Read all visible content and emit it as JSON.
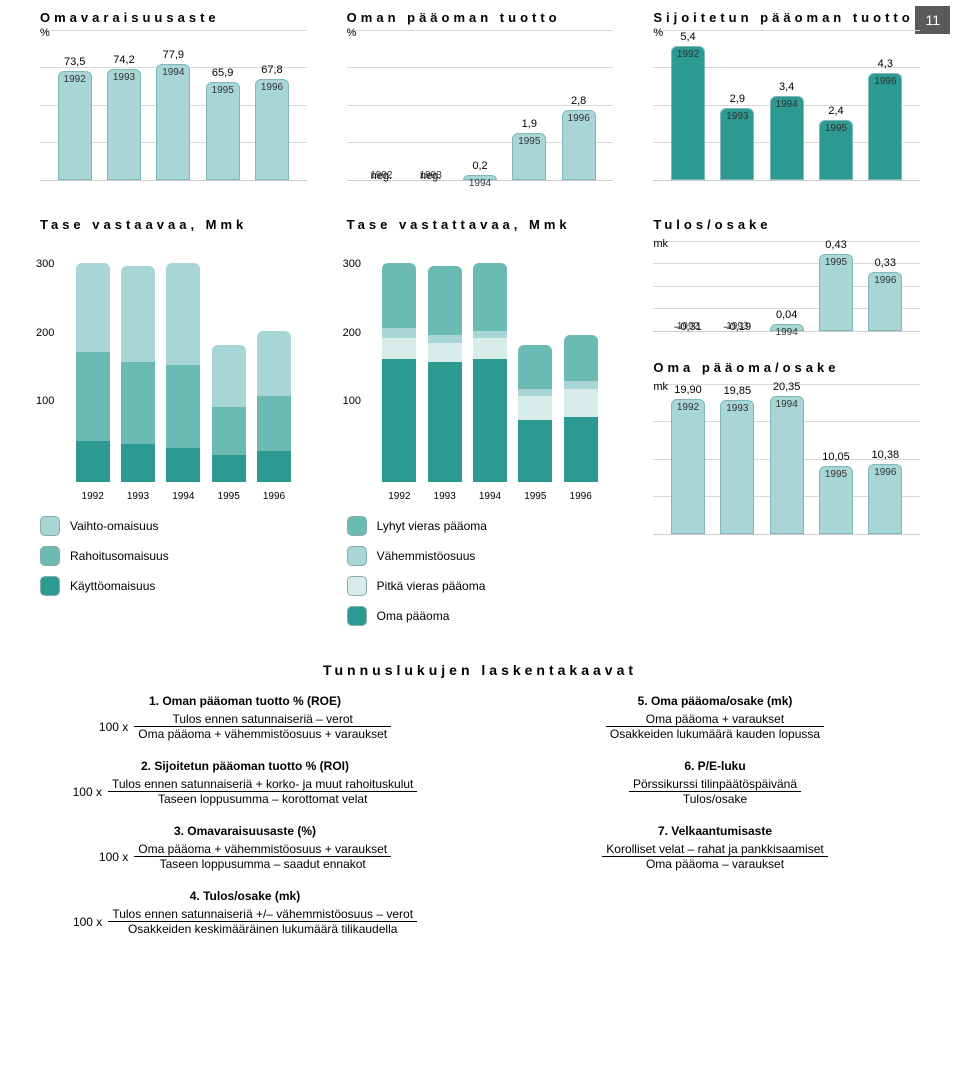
{
  "page_number": "11",
  "colors": {
    "bar_light": "#a8d5d6",
    "bar_dark": "#2c9a91",
    "seg3": "#6bbab4",
    "seg_pale": "#d8ece9",
    "grid": "#d8d8d8"
  },
  "chart1": {
    "title": "Omavaraisuusaste",
    "ylabel": "%",
    "years": [
      "1992",
      "1993",
      "1994",
      "1995",
      "1996"
    ],
    "values": [
      73.5,
      74.2,
      77.9,
      65.9,
      67.8
    ],
    "labels": [
      "73,5",
      "74,2",
      "77,9",
      "65,9",
      "67,8"
    ],
    "ymax": 100
  },
  "chart2": {
    "title": "Oman pääoman tuotto",
    "ylabel": "%",
    "years": [
      "1992",
      "1993",
      "1994",
      "1995",
      "1996"
    ],
    "values": [
      null,
      null,
      0.2,
      1.9,
      2.8
    ],
    "labels": [
      "neg.",
      "neg.",
      "0,2",
      "1,9",
      "2,8"
    ],
    "ymax": 6
  },
  "chart3": {
    "title": "Sijoitetun pääoman tuotto",
    "ylabel": "%",
    "years": [
      "1992",
      "1993",
      "1994",
      "1995",
      "1996"
    ],
    "values": [
      5.4,
      2.9,
      3.4,
      2.4,
      4.3
    ],
    "labels": [
      "5,4",
      "2,9",
      "3,4",
      "2,4",
      "4,3"
    ],
    "ymax": 6,
    "bar_color": "#2c9a91"
  },
  "chart4": {
    "title": "Tase vastaavaa, Mmk",
    "years": [
      "1992",
      "1993",
      "1994",
      "1995",
      "1996"
    ],
    "yticks": [
      "300",
      "200",
      "100"
    ],
    "ymax": 350,
    "stacks": [
      [
        60,
        130,
        130
      ],
      [
        55,
        120,
        140
      ],
      [
        50,
        120,
        150
      ],
      [
        40,
        70,
        90
      ],
      [
        45,
        80,
        95
      ]
    ],
    "seg_colors": [
      "#2c9a91",
      "#6bbab4",
      "#a8d5d6"
    ],
    "legend": [
      {
        "label": "Vaihto-omaisuus",
        "color": "#a8d5d6"
      },
      {
        "label": "Rahoitusomaisuus",
        "color": "#6bbab4"
      },
      {
        "label": "Käyttöomaisuus",
        "color": "#2c9a91"
      }
    ]
  },
  "chart5": {
    "title": "Tase vastattavaa, Mmk",
    "years": [
      "1992",
      "1993",
      "1994",
      "1995",
      "1996"
    ],
    "yticks": [
      "300",
      "200",
      "100"
    ],
    "ymax": 350,
    "stacks": [
      [
        180,
        30,
        15,
        95
      ],
      [
        175,
        28,
        12,
        100
      ],
      [
        180,
        30,
        10,
        100
      ],
      [
        90,
        35,
        10,
        65
      ],
      [
        95,
        40,
        12,
        68
      ]
    ],
    "seg_colors": [
      "#2c9a91",
      "#d8ece9",
      "#a8d5d6",
      "#6bbab4"
    ],
    "legend": [
      {
        "label": "Lyhyt vieras pääoma",
        "color": "#6bbab4"
      },
      {
        "label": "Vähemmistöosuus",
        "color": "#a8d5d6"
      },
      {
        "label": "Pitkä vieras pääoma",
        "color": "#d8ece9"
      },
      {
        "label": "Oma pääoma",
        "color": "#2c9a91"
      }
    ]
  },
  "chart6": {
    "title": "Tulos/osake",
    "ylabel": "mk",
    "years": [
      "1992",
      "1993",
      "1994",
      "1995",
      "1996"
    ],
    "values": [
      -0.31,
      -0.19,
      0.04,
      0.43,
      0.33
    ],
    "labels": [
      "–0,31",
      "–0,19",
      "0,04",
      "0,43",
      "0,33"
    ],
    "ymax": 0.5
  },
  "chart7": {
    "title": "Oma pääoma/osake",
    "ylabel": "mk",
    "years": [
      "1992",
      "1993",
      "1994",
      "1995",
      "1996"
    ],
    "values": [
      19.9,
      19.85,
      20.35,
      10.05,
      10.38
    ],
    "labels": [
      "19,90",
      "19,85",
      "20,35",
      "10,05",
      "10,38"
    ],
    "ymax": 22
  },
  "formulas_title": "Tunnuslukujen laskentakaavat",
  "formulas_left": [
    {
      "n": "1",
      "title": "Oman pääoman tuotto % (ROE)",
      "mult": "100 x",
      "num": "Tulos ennen satunnaiseriä – verot",
      "den": "Oma pääoma + vähemmistöosuus + varaukset"
    },
    {
      "n": "2",
      "title": "Sijoitetun pääoman tuotto % (ROI)",
      "mult": "100 x",
      "num": "Tulos ennen satunnaiseriä + korko- ja muut rahoituskulut",
      "den": "Taseen loppusumma – korottomat velat"
    },
    {
      "n": "3",
      "title": "Omavaraisuusaste (%)",
      "mult": "100 x",
      "num": "Oma pääoma + vähemmistöosuus + varaukset",
      "den": "Taseen loppusumma – saadut ennakot"
    },
    {
      "n": "4",
      "title": "Tulos/osake (mk)",
      "mult": "100 x",
      "num": "Tulos ennen satunnaiseriä +/– vähemmistöosuus – verot",
      "den": "Osakkeiden keskimääräinen lukumäärä tilikaudella"
    }
  ],
  "formulas_right": [
    {
      "n": "5",
      "title": "Oma pääoma/osake (mk)",
      "num": "Oma pääoma + varaukset",
      "den": "Osakkeiden lukumäärä kauden lopussa"
    },
    {
      "n": "6",
      "title": "P/E-luku",
      "num": "Pörssikurssi tilinpäätöspäivänä",
      "den": "Tulos/osake"
    },
    {
      "n": "7",
      "title": "Velkaantumisaste",
      "num": "Korolliset velat – rahat ja pankkisaamiset",
      "den": "Oma pääoma – varaukset"
    }
  ]
}
